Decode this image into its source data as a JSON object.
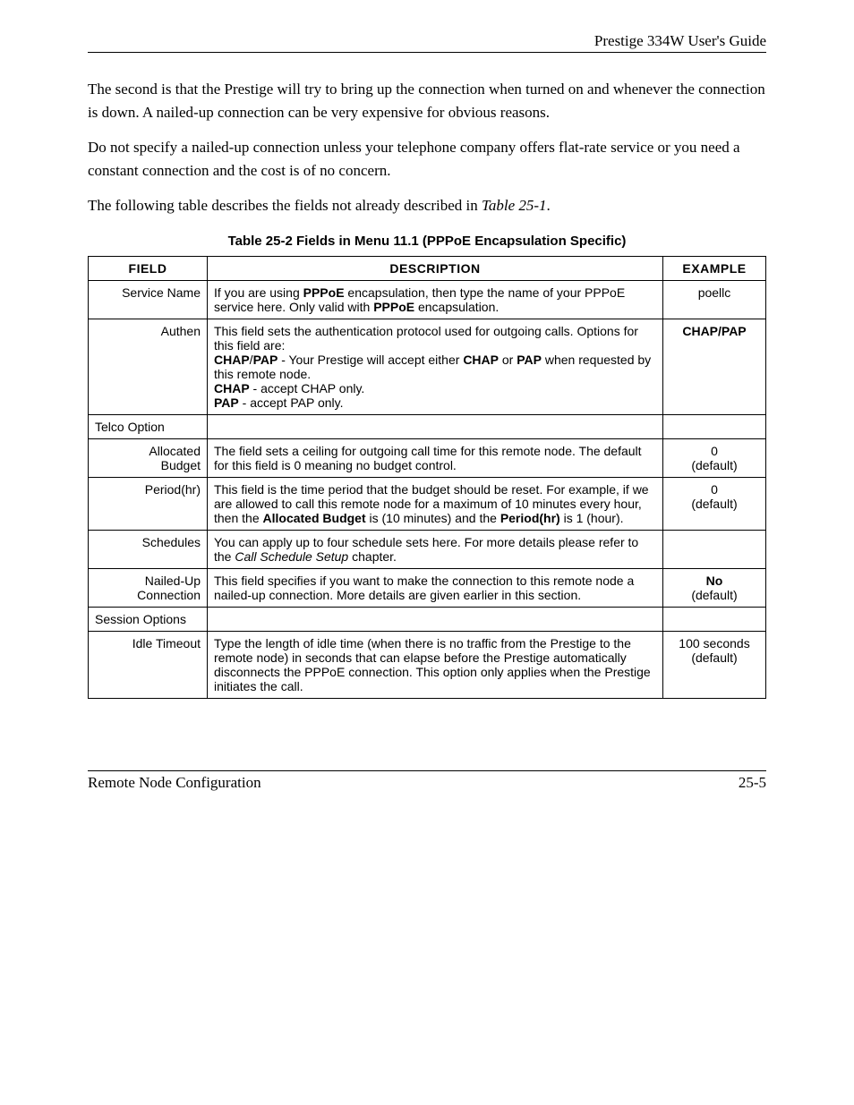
{
  "header": {
    "title": "Prestige 334W User's Guide"
  },
  "paragraphs": {
    "p1": "The second is that the Prestige will try to bring up the connection when turned on and whenever the connection is down. A nailed-up connection can be very expensive for obvious reasons.",
    "p2": "Do not specify a nailed-up connection unless your telephone company offers flat-rate service or you need a constant connection and the cost is of no concern.",
    "p3_a": "The following table describes the fields not already described in ",
    "p3_ref": "Table 25-1",
    "p3_b": "."
  },
  "table": {
    "caption": "Table 25-2 Fields in Menu 11.1 (PPPoE Encapsulation Specific)",
    "headers": {
      "field": "FIELD",
      "description": "DESCRIPTION",
      "example": "EXAMPLE"
    },
    "columns": {
      "field_width": 118,
      "example_width": 100
    },
    "rows": {
      "service_name": {
        "field": "Service Name",
        "d1": "If you are using ",
        "d2": "PPPoE",
        "d3": " encapsulation, then type the name of your PPPoE service here. Only valid with ",
        "d4": "PPPoE",
        "d5": " encapsulation.",
        "example": "poellc"
      },
      "authen": {
        "field": "Authen",
        "d1": "This field sets the authentication protocol used for outgoing calls. Options for this field are:",
        "d2a": "CHAP",
        "d2b": "/",
        "d2c": "PAP",
        "d2d": " - Your Prestige will accept either ",
        "d2e": "CHAP",
        "d2f": " or ",
        "d2g": "PAP",
        "d2h": " when requested by this remote node.",
        "d3a": "CHAP",
        "d3b": " - accept CHAP only.",
        "d4a": "PAP",
        "d4b": " - accept PAP only.",
        "example": "CHAP/PAP"
      },
      "telco": {
        "field": "Telco Option"
      },
      "allocated": {
        "field_l1": "Allocated",
        "field_l2": "Budget",
        "desc": "The field sets a ceiling for outgoing call time for this remote node. The default for this field is 0 meaning no budget control.",
        "ex_l1": "0",
        "ex_l2": "(default)"
      },
      "period": {
        "field": "Period(hr)",
        "d1": "This field is the time period that the budget should be reset. For example, if we are allowed to call this remote node for a maximum of 10 minutes every hour, then the ",
        "d2": "Allocated Budget",
        "d3": " is (10 minutes) and the ",
        "d4": "Period(hr)",
        "d5": " is 1 (hour).",
        "ex_l1": "0",
        "ex_l2": "(default)"
      },
      "schedules": {
        "field": "Schedules",
        "d1": "You can apply up to four schedule sets here. For more details please refer to the ",
        "d2": "Call Schedule Setup",
        "d3": " chapter."
      },
      "nailed": {
        "field_l1": "Nailed-Up",
        "field_l2": "Connection",
        "desc": "This field specifies if you want to make the connection to this remote node a nailed-up connection. More details are given earlier in this section.",
        "ex_l1": "No",
        "ex_l2": "(default)"
      },
      "session": {
        "field": "Session Options"
      },
      "idle": {
        "field": "Idle Timeout",
        "desc": "Type the length of idle time (when there is no traffic from the Prestige to the remote node) in seconds that can elapse before the Prestige automatically disconnects the PPPoE connection. This option only applies when the Prestige initiates the call.",
        "ex_l1": "100 seconds",
        "ex_l2": "(default)"
      }
    }
  },
  "footer": {
    "left": "Remote Node Configuration",
    "right": "25-5"
  },
  "style": {
    "body_font_size_pt": 12,
    "table_font_size_pt": 10,
    "caption_font_size_pt": 11,
    "border_color": "#000000",
    "background_color": "#ffffff",
    "text_color": "#000000"
  }
}
